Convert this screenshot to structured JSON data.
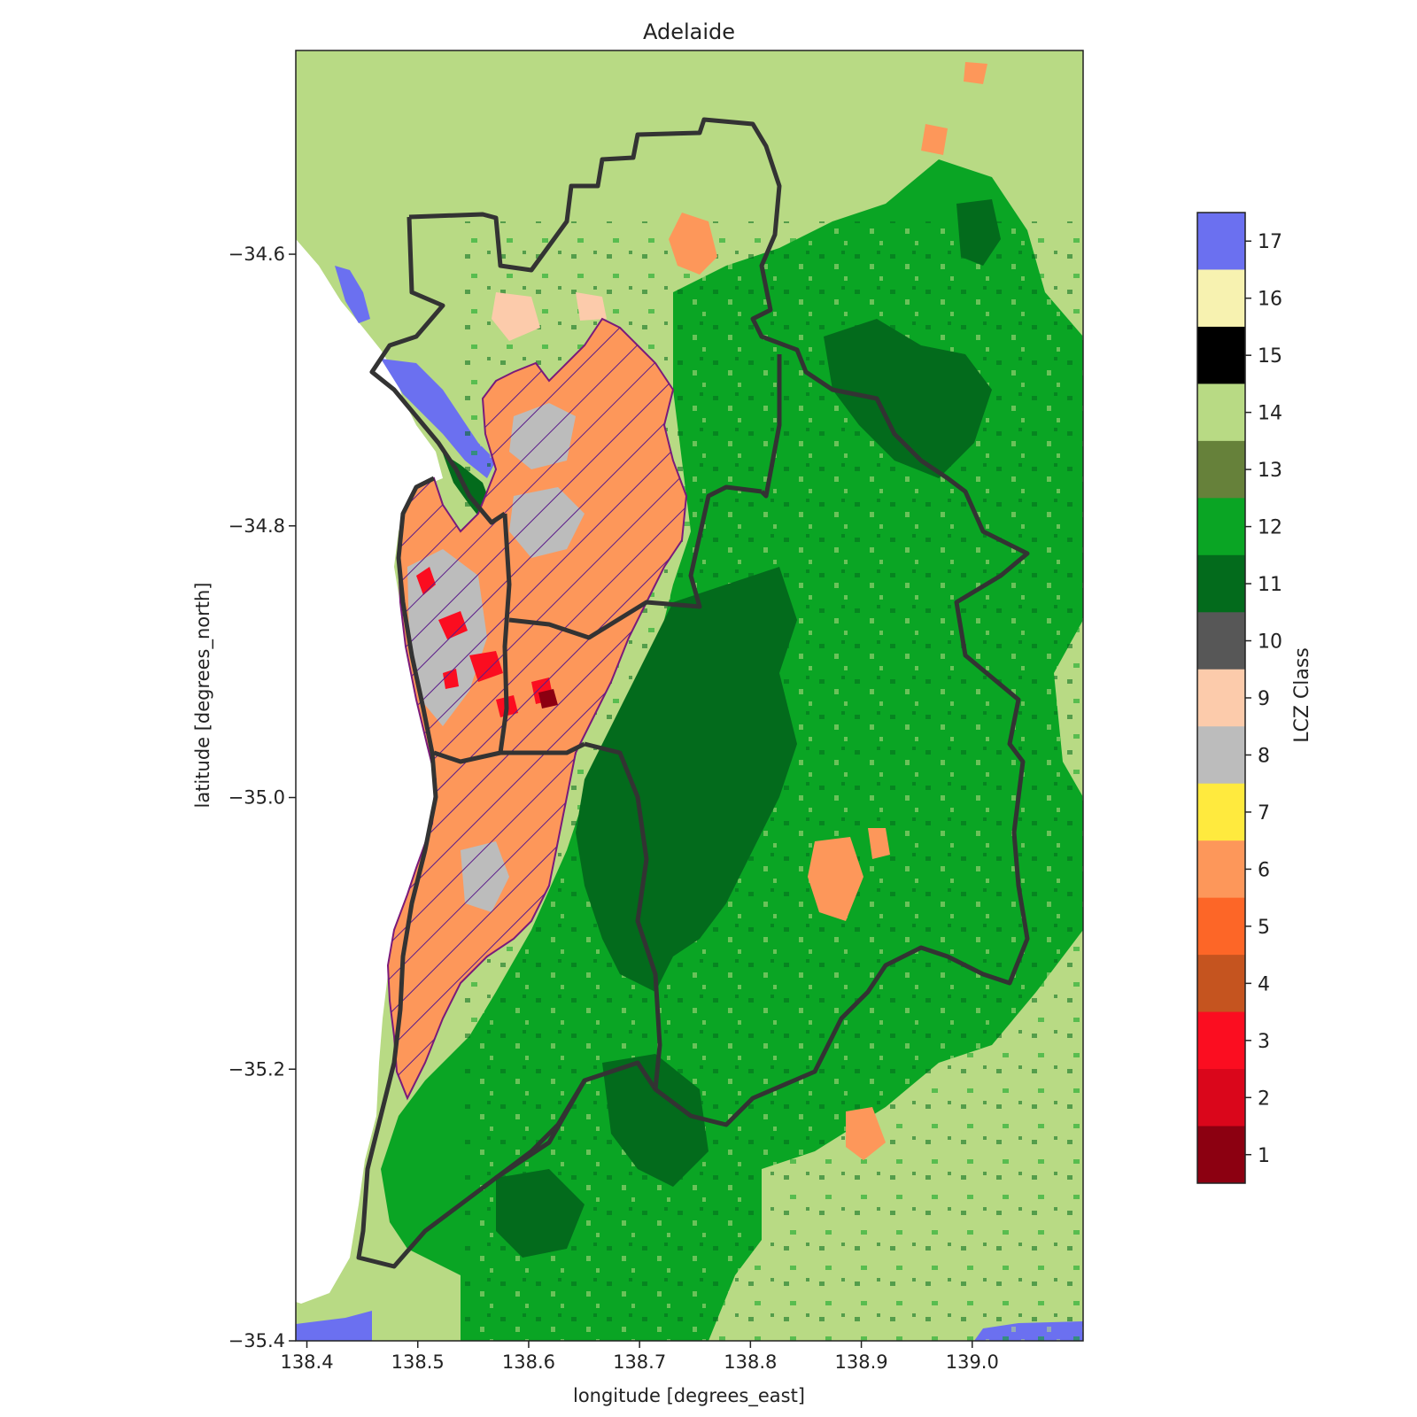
{
  "title": "Adelaide",
  "xlabel": "longitude [degrees_east]",
  "ylabel": "latitude [degrees_north]",
  "colorbar_label": "LCZ Class",
  "x_range": [
    138.39,
    139.1
  ],
  "y_range": [
    -35.4,
    -34.45
  ],
  "x_ticks": [
    {
      "value": 138.4,
      "label": "138.4"
    },
    {
      "value": 138.5,
      "label": "138.5"
    },
    {
      "value": 138.6,
      "label": "138.6"
    },
    {
      "value": 138.7,
      "label": "138.7"
    },
    {
      "value": 138.8,
      "label": "138.8"
    },
    {
      "value": 138.9,
      "label": "138.9"
    },
    {
      "value": 139.0,
      "label": "139.0"
    }
  ],
  "y_ticks": [
    {
      "value": -34.6,
      "label": "−34.6"
    },
    {
      "value": -34.8,
      "label": "−34.8"
    },
    {
      "value": -35.0,
      "label": "−35.0"
    },
    {
      "value": -35.2,
      "label": "−35.2"
    },
    {
      "value": -35.4,
      "label": "−35.4"
    }
  ],
  "lcz_classes": [
    {
      "value": 17,
      "label": "17",
      "color": "#6b70f0"
    },
    {
      "value": 16,
      "label": "16",
      "color": "#f7f2b0"
    },
    {
      "value": 15,
      "label": "15",
      "color": "#000000"
    },
    {
      "value": 14,
      "label": "14",
      "color": "#b8da84"
    },
    {
      "value": 13,
      "label": "13",
      "color": "#66813a"
    },
    {
      "value": 12,
      "label": "12",
      "color": "#0aa524"
    },
    {
      "value": 11,
      "label": "11",
      "color": "#036b1c"
    },
    {
      "value": 10,
      "label": "10",
      "color": "#575757"
    },
    {
      "value": 9,
      "label": "9",
      "color": "#fccbab"
    },
    {
      "value": 8,
      "label": "8",
      "color": "#bcbcbc"
    },
    {
      "value": 7,
      "label": "7",
      "color": "#ffea3e"
    },
    {
      "value": 6,
      "label": "6",
      "color": "#fd975a"
    },
    {
      "value": 5,
      "label": "5",
      "color": "#fd6627"
    },
    {
      "value": 4,
      "label": "4",
      "color": "#c5541f"
    },
    {
      "value": 3,
      "label": "3",
      "color": "#fb0d20"
    },
    {
      "value": 2,
      "label": "2",
      "color": "#da061b"
    },
    {
      "value": 1,
      "label": "1",
      "color": "#8c0011"
    }
  ],
  "colors": {
    "boundary": "#333333",
    "urban_outline": "#7a1a7a",
    "hatch": "#5a1a8a"
  }
}
